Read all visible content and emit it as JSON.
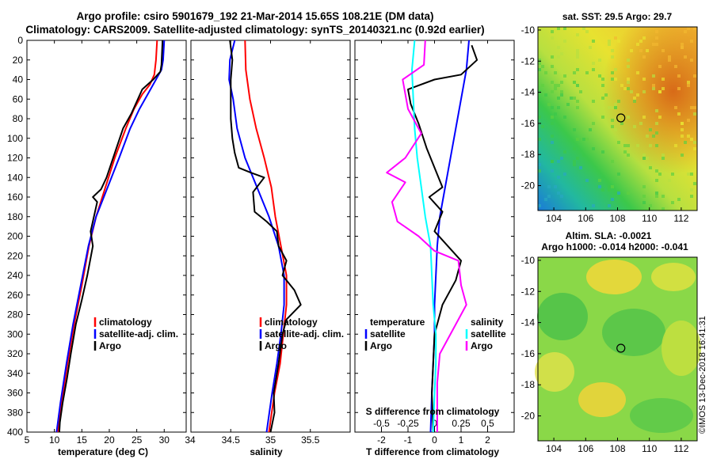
{
  "header": {
    "line1": "Argo profile: csiro 5901679_192 21-Mar-2014 15.65S 108.21E (DM data)",
    "line2": "Climatology: CARS2009. Satellite-adjusted climatology: synTS_20140321.nc (0.92d earlier)"
  },
  "colors": {
    "climatology": "#ff0000",
    "satellite": "#0000ff",
    "argo": "#000000",
    "sat_salinity": "#00ffff",
    "argo_salinity": "#ff00ff"
  },
  "footer_stamp": "©IMOS 13-Dec-2018 16:41:31",
  "chart_data": [
    {
      "type": "line",
      "name": "temperature-profile",
      "xlabel": "temperature (deg C)",
      "ylabel": "",
      "xlim": [
        5,
        34
      ],
      "ylim": [
        400,
        0
      ],
      "xticks": [
        5,
        10,
        15,
        20,
        25,
        30
      ],
      "x_extra_tick_label": "34",
      "yticks": [
        0,
        20,
        40,
        60,
        80,
        100,
        120,
        140,
        160,
        180,
        200,
        220,
        240,
        260,
        280,
        300,
        320,
        340,
        360,
        380,
        400
      ],
      "legend": [
        "climatology",
        "satellite-adj. clim.",
        "Argo"
      ],
      "series": [
        {
          "name": "climatology",
          "color": "climatology",
          "points": [
            [
              28.7,
              0
            ],
            [
              28.5,
              20
            ],
            [
              28.2,
              35
            ],
            [
              27.4,
              45
            ],
            [
              26.0,
              55
            ],
            [
              24.5,
              70
            ],
            [
              23.0,
              90
            ],
            [
              21.0,
              120
            ],
            [
              19.3,
              150
            ],
            [
              17.6,
              180
            ],
            [
              16.3,
              210
            ],
            [
              15.0,
              250
            ],
            [
              13.6,
              290
            ],
            [
              12.4,
              330
            ],
            [
              11.3,
              370
            ],
            [
              10.6,
              400
            ]
          ]
        },
        {
          "name": "satellite-adj. clim.",
          "color": "satellite",
          "points": [
            [
              30.0,
              0
            ],
            [
              29.8,
              20
            ],
            [
              29.5,
              30
            ],
            [
              28.5,
              40
            ],
            [
              27.0,
              55
            ],
            [
              25.5,
              70
            ],
            [
              23.8,
              90
            ],
            [
              21.8,
              120
            ],
            [
              19.7,
              150
            ],
            [
              17.6,
              180
            ],
            [
              16.2,
              210
            ],
            [
              14.8,
              250
            ],
            [
              13.4,
              290
            ],
            [
              12.2,
              330
            ],
            [
              11.1,
              370
            ],
            [
              10.4,
              400
            ]
          ]
        },
        {
          "name": "Argo",
          "color": "argo",
          "points": [
            [
              29.7,
              0
            ],
            [
              29.5,
              25
            ],
            [
              29.3,
              32
            ],
            [
              28.0,
              40
            ],
            [
              26.0,
              50
            ],
            [
              24.0,
              75
            ],
            [
              22.5,
              90
            ],
            [
              21.0,
              115
            ],
            [
              19.5,
              140
            ],
            [
              18.5,
              152
            ],
            [
              17.0,
              160
            ],
            [
              17.8,
              165
            ],
            [
              16.6,
              195
            ],
            [
              17.0,
              210
            ],
            [
              16.0,
              240
            ],
            [
              15.0,
              265
            ],
            [
              13.9,
              290
            ],
            [
              13.0,
              320
            ],
            [
              12.3,
              345
            ],
            [
              11.5,
              370
            ],
            [
              11.0,
              390
            ],
            [
              10.9,
              400
            ]
          ]
        }
      ]
    },
    {
      "type": "line",
      "name": "salinity-profile",
      "xlabel": "salinity",
      "xlim": [
        34,
        36
      ],
      "ylim": [
        400,
        0
      ],
      "xticks": [
        34.5,
        35,
        35.5
      ],
      "legend": [
        "climatology",
        "satellite-adj. clim.",
        "Argo"
      ],
      "series": [
        {
          "name": "climatology",
          "color": "climatology",
          "points": [
            [
              34.68,
              0
            ],
            [
              34.69,
              30
            ],
            [
              34.74,
              60
            ],
            [
              34.82,
              90
            ],
            [
              34.92,
              120
            ],
            [
              35.01,
              150
            ],
            [
              35.06,
              180
            ],
            [
              35.13,
              210
            ],
            [
              35.2,
              240
            ],
            [
              35.2,
              270
            ],
            [
              35.16,
              300
            ],
            [
              35.12,
              330
            ],
            [
              35.05,
              360
            ],
            [
              34.98,
              400
            ]
          ]
        },
        {
          "name": "satellite-adj. clim.",
          "color": "satellite",
          "points": [
            [
              34.55,
              0
            ],
            [
              34.49,
              20
            ],
            [
              34.48,
              40
            ],
            [
              34.53,
              60
            ],
            [
              34.58,
              90
            ],
            [
              34.68,
              120
            ],
            [
              34.83,
              150
            ],
            [
              34.98,
              180
            ],
            [
              35.1,
              210
            ],
            [
              35.17,
              240
            ],
            [
              35.17,
              270
            ],
            [
              35.13,
              300
            ],
            [
              35.08,
              330
            ],
            [
              35.02,
              360
            ],
            [
              34.95,
              400
            ]
          ]
        },
        {
          "name": "Argo",
          "color": "argo",
          "points": [
            [
              34.49,
              0
            ],
            [
              34.52,
              20
            ],
            [
              34.5,
              40
            ],
            [
              34.5,
              60
            ],
            [
              34.5,
              80
            ],
            [
              34.52,
              100
            ],
            [
              34.55,
              115
            ],
            [
              34.6,
              130
            ],
            [
              34.75,
              135
            ],
            [
              34.92,
              140
            ],
            [
              34.78,
              155
            ],
            [
              34.8,
              175
            ],
            [
              34.95,
              185
            ],
            [
              35.08,
              195
            ],
            [
              35.1,
              210
            ],
            [
              35.2,
              225
            ],
            [
              35.15,
              240
            ],
            [
              35.3,
              255
            ],
            [
              35.38,
              270
            ],
            [
              35.2,
              285
            ],
            [
              35.15,
              300
            ],
            [
              35.1,
              330
            ],
            [
              35.04,
              360
            ],
            [
              35.05,
              380
            ],
            [
              35.0,
              400
            ]
          ]
        }
      ]
    },
    {
      "type": "line",
      "name": "difference-profile",
      "xlabel": "T difference from climatology",
      "xlabel_top": "S difference from climatology",
      "xlim": [
        -3,
        3
      ],
      "ylim": [
        400,
        0
      ],
      "xticks": [
        -2,
        -1,
        0,
        1,
        2
      ],
      "s_xticks": [
        -0.5,
        -0.25,
        0,
        0.25,
        0.5
      ],
      "legend_temperature": [
        "temperature",
        "satellite",
        "Argo"
      ],
      "legend_salinity": [
        "salinity",
        "satellite",
        "Argo"
      ],
      "series": [
        {
          "name": "temperature satellite",
          "color": "satellite",
          "points": [
            [
              1.3,
              0
            ],
            [
              1.2,
              30
            ],
            [
              1.0,
              60
            ],
            [
              0.8,
              90
            ],
            [
              0.6,
              120
            ],
            [
              0.4,
              150
            ],
            [
              0.2,
              180
            ],
            [
              0.1,
              210
            ],
            [
              0.05,
              240
            ],
            [
              0.0,
              270
            ],
            [
              0.0,
              300
            ],
            [
              -0.05,
              330
            ],
            [
              -0.1,
              360
            ],
            [
              -0.15,
              400
            ]
          ]
        },
        {
          "name": "temperature Argo",
          "color": "argo",
          "points": [
            [
              1.4,
              5
            ],
            [
              1.6,
              20
            ],
            [
              1.0,
              35
            ],
            [
              0.0,
              40
            ],
            [
              -1.0,
              50
            ],
            [
              -0.9,
              65
            ],
            [
              -0.6,
              85
            ],
            [
              -0.3,
              110
            ],
            [
              0.0,
              130
            ],
            [
              0.3,
              150
            ],
            [
              -0.2,
              160
            ],
            [
              0.3,
              175
            ],
            [
              0.0,
              195
            ],
            [
              0.5,
              210
            ],
            [
              1.0,
              225
            ],
            [
              0.8,
              245
            ],
            [
              0.3,
              270
            ],
            [
              0.0,
              300
            ],
            [
              -0.05,
              330
            ],
            [
              -0.1,
              360
            ],
            [
              -0.05,
              400
            ]
          ]
        },
        {
          "name": "salinity satellite",
          "color": "sat_salinity",
          "points": [
            [
              -0.75,
              0
            ],
            [
              -0.85,
              30
            ],
            [
              -0.8,
              60
            ],
            [
              -0.75,
              90
            ],
            [
              -0.65,
              120
            ],
            [
              -0.5,
              150
            ],
            [
              -0.35,
              180
            ],
            [
              -0.15,
              210
            ],
            [
              -0.1,
              240
            ],
            [
              -0.05,
              270
            ],
            [
              0.05,
              300
            ],
            [
              0.05,
              330
            ],
            [
              0.0,
              360
            ],
            [
              -0.05,
              400
            ]
          ]
        },
        {
          "name": "salinity Argo",
          "color": "argo_salinity",
          "points": [
            [
              -0.35,
              0
            ],
            [
              -0.4,
              25
            ],
            [
              -1.2,
              40
            ],
            [
              -1.0,
              70
            ],
            [
              -0.5,
              95
            ],
            [
              -1.1,
              120
            ],
            [
              -1.8,
              135
            ],
            [
              -1.1,
              145
            ],
            [
              -1.6,
              165
            ],
            [
              -1.4,
              185
            ],
            [
              -0.6,
              200
            ],
            [
              0.0,
              215
            ],
            [
              0.9,
              225
            ],
            [
              1.0,
              250
            ],
            [
              1.2,
              270
            ],
            [
              0.8,
              290
            ],
            [
              0.2,
              320
            ],
            [
              0.1,
              350
            ],
            [
              0.1,
              400
            ]
          ]
        }
      ]
    },
    {
      "type": "heatmap",
      "name": "sst-map",
      "title": "sat. SST: 29.5 Argo: 29.7",
      "xticks": [
        104,
        106,
        108,
        110,
        112
      ],
      "yticks": [
        -10,
        -12,
        -14,
        -16,
        -18,
        -20
      ],
      "xlim": [
        103,
        113
      ],
      "ylim": [
        -21.6,
        -9.8
      ],
      "float_position": [
        108.21,
        -15.65
      ]
    },
    {
      "type": "heatmap",
      "name": "sla-map",
      "title": "Altim. SLA: -0.0021",
      "subtitle": "Argo h1000: -0.014 h2000: -0.041",
      "xticks": [
        104,
        106,
        108,
        110,
        112
      ],
      "yticks": [
        -10,
        -12,
        -14,
        -16,
        -18,
        -20
      ],
      "xlim": [
        103,
        113
      ],
      "ylim": [
        -21.6,
        -9.8
      ],
      "float_position": [
        108.21,
        -15.65
      ]
    }
  ]
}
